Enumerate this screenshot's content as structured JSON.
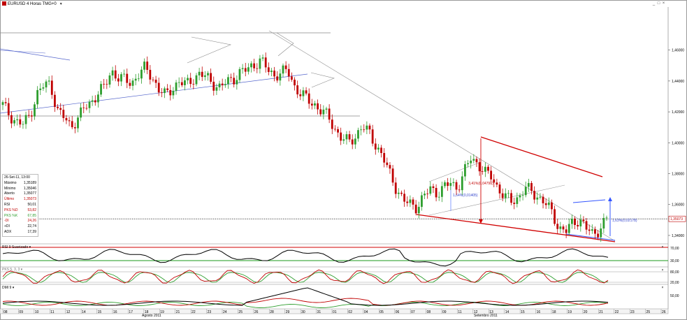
{
  "window": {
    "title": "EURUSD 4 Horas TMG+0",
    "buttons": [
      "_",
      "□",
      "×"
    ]
  },
  "colors": {
    "up_candle": "#2e9e2e",
    "down_candle": "#c00000",
    "channel": "#d00000",
    "trendline_blue": "#3355ff",
    "rsi_line": "#000000",
    "stoch_k": "#c00000",
    "stoch_d": "#2e9e2e",
    "dmi_adx": "#000000",
    "dmi_minus": "#c00000",
    "dmi_plus": "#2e9e2e"
  },
  "price_axis": {
    "ticks": [
      "1,46000",
      "1,44000",
      "1,42000",
      "1,40000",
      "1,38000",
      "1,36000",
      "1,34000"
    ],
    "current_price_tag": "1,35073"
  },
  "annotations": {
    "measure_1": "3,41%(0,04791)",
    "measure_2": "1,64%(0,01405)",
    "measure_3": "1,63%(0,02178)"
  },
  "info_panel": {
    "date": "26-Set-11, 13:00",
    "rows": [
      {
        "label": "Máximo",
        "value": "1,35189"
      },
      {
        "label": "Mínimo",
        "value": "1,35046"
      },
      {
        "label": "Aberto",
        "value": "1,35077"
      },
      {
        "label": "Último",
        "value": "1,35073"
      },
      {
        "label": "RSI",
        "value": "50,01"
      },
      {
        "label": "PKS %D",
        "value": "53,82"
      },
      {
        "label": "PKS %K",
        "value": "67,85"
      },
      {
        "label": "-DI",
        "value": "24,26"
      },
      {
        "label": "+DI",
        "value": "22,74"
      },
      {
        "label": "ADX",
        "value": "17,39"
      }
    ]
  },
  "panels": {
    "rsi": {
      "title": "RSI 9 Suavizado",
      "ticks": [
        "70,00",
        "30,00"
      ]
    },
    "stoch": {
      "title": "PKS 5, 3, 3",
      "ticks": [
        "80,00",
        "20,00"
      ]
    },
    "dmi": {
      "title": "DMI 9",
      "ticks": [
        "50,00"
      ]
    }
  },
  "x_axis": {
    "day_labels": [
      "08",
      "09",
      "10",
      "11",
      "12",
      "14",
      "15",
      "16",
      "17",
      "18",
      "19",
      "21",
      "22",
      "23",
      "24",
      "25",
      "26",
      "28",
      "29",
      "30",
      "31",
      "01",
      "02",
      "04",
      "05",
      "06",
      "07",
      "08",
      "09",
      "11",
      "12",
      "13",
      "14",
      "15",
      "16",
      "18",
      "19",
      "20",
      "21",
      "22",
      "23",
      "25",
      "26"
    ],
    "months": [
      "Agosto 2011",
      "Setembro 2011"
    ]
  },
  "chart_data": {
    "type": "candlestick",
    "title": "EURUSD 4 Horas TMG+0",
    "ylim": [
      1.335,
      1.487
    ],
    "current_price": 1.35073,
    "indicators": [
      "RSI 9 Suavizado",
      "PKS 5, 3, 3",
      "DMI 9"
    ],
    "price_path": [
      1.4245,
      1.418,
      1.4135,
      1.412,
      1.418,
      1.431,
      1.437,
      1.4385,
      1.421,
      1.4165,
      1.4105,
      1.4155,
      1.4225,
      1.426,
      1.4325,
      1.436,
      1.4465,
      1.4425,
      1.4405,
      1.4385,
      1.4445,
      1.4485,
      1.4425,
      1.4345,
      1.4305,
      1.4355,
      1.4395,
      1.4375,
      1.4415,
      1.4445,
      1.4425,
      1.4385,
      1.4355,
      1.4395,
      1.4415,
      1.4455,
      1.4475,
      1.4505,
      1.4535,
      1.4475,
      1.4435,
      1.4455,
      1.4465,
      1.4365,
      1.4315,
      1.4275,
      1.4245,
      1.4205,
      1.4165,
      1.4085,
      1.4025,
      1.4005,
      1.4045,
      1.4105,
      1.4065,
      1.3985,
      1.3905,
      1.3805,
      1.3705,
      1.3625,
      1.3605,
      1.3585,
      1.3645,
      1.3705,
      1.3675,
      1.3705,
      1.3745,
      1.3705,
      1.3805,
      1.3905,
      1.3865,
      1.3805,
      1.3785,
      1.3705,
      1.3645,
      1.3625,
      1.3645,
      1.3705,
      1.3685,
      1.3645,
      1.3605,
      1.3545,
      1.3445,
      1.3425,
      1.3485,
      1.3505,
      1.3445,
      1.3405,
      1.3445,
      1.3507
    ]
  }
}
